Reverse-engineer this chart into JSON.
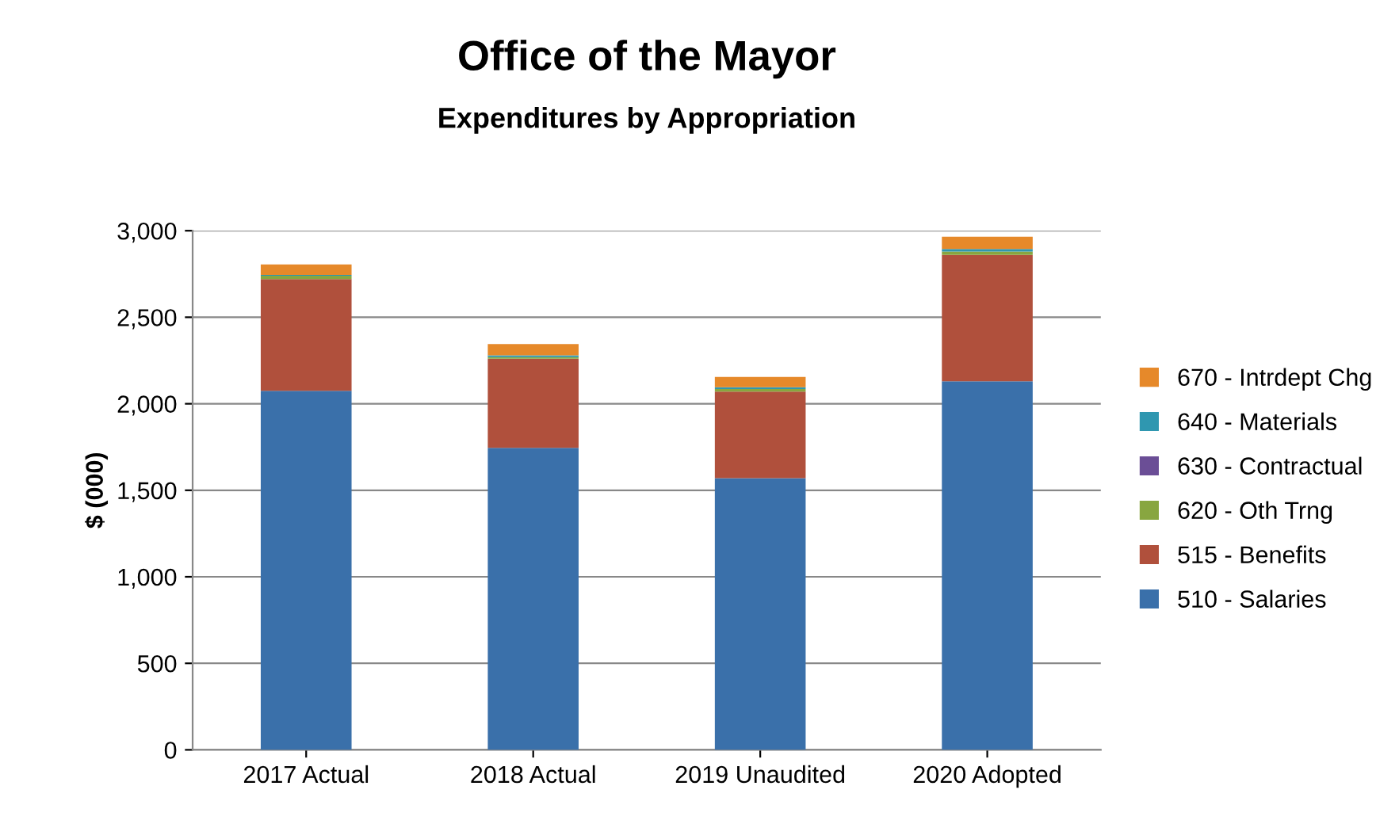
{
  "chart_data": {
    "type": "bar",
    "title": "Office of the Mayor",
    "subtitle": "Expenditures by Appropriation",
    "ylabel": "$ (000)",
    "categories": [
      "2017 Actual",
      "2018 Actual",
      "2019 Unaudited",
      "2020 Adopted"
    ],
    "stacked": true,
    "ylim": [
      0,
      3000
    ],
    "yticks": [
      0,
      500,
      {
        "value": 1000,
        "label": "1,000"
      },
      {
        "value": 1500,
        "label": "1,500"
      },
      {
        "value": 2000,
        "label": "2,000"
      },
      {
        "value": 2500,
        "label": "2,500"
      },
      {
        "value": 3000,
        "label": "3,000"
      }
    ],
    "grid": "y",
    "legend": "right",
    "series": [
      {
        "name": "510 - Salaries",
        "color": "#3a70aa",
        "values": [
          2075,
          1745,
          1570,
          2130
        ]
      },
      {
        "name": "515 - Benefits",
        "color": "#b0503c",
        "values": [
          645,
          515,
          500,
          730
        ]
      },
      {
        "name": "620 - Oth Trng",
        "color": "#88a640",
        "values": [
          20,
          10,
          15,
          20
        ]
      },
      {
        "name": "630 - Contractual",
        "color": "#6b4e96",
        "values": [
          0,
          0,
          0,
          0
        ]
      },
      {
        "name": "640 - Materials",
        "color": "#2f97b0",
        "values": [
          5,
          10,
          10,
          15
        ]
      },
      {
        "name": "670 - Intrdept Chg",
        "color": "#e6892a",
        "values": [
          60,
          65,
          60,
          70
        ]
      }
    ]
  }
}
